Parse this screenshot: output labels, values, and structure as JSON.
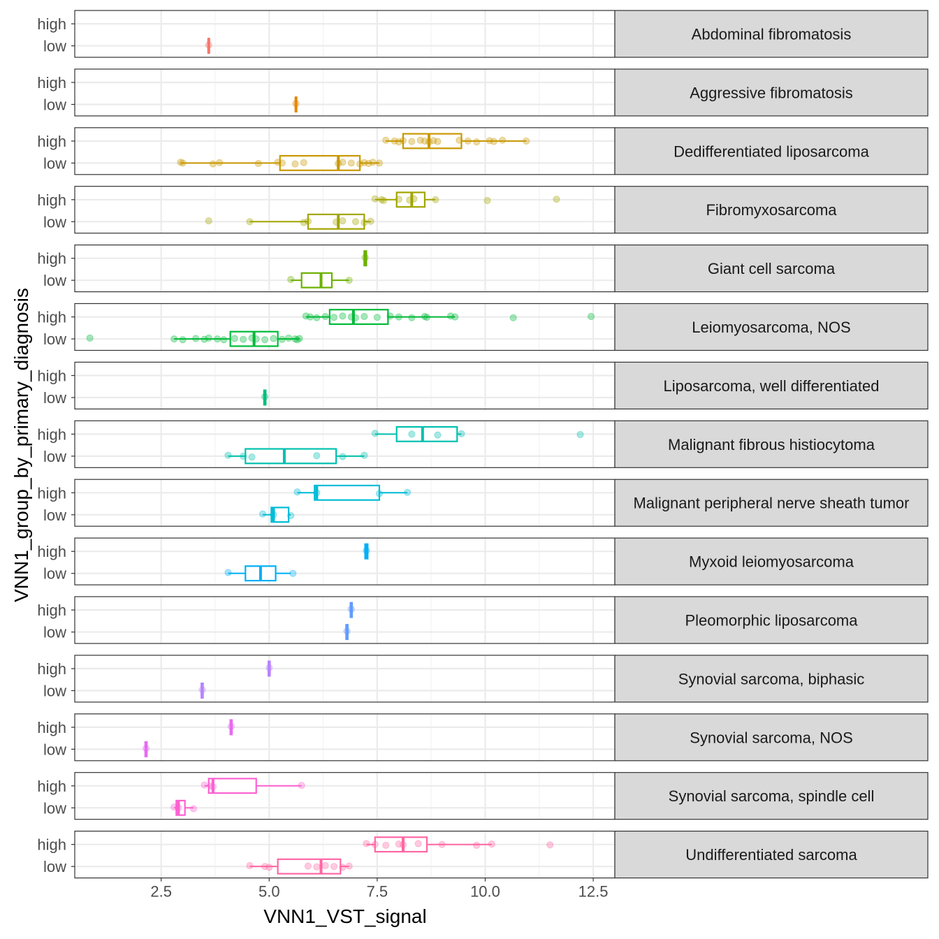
{
  "chart_data": {
    "type": "boxplot",
    "orientation": "horizontal",
    "facet_by": "primary_diagnosis",
    "xlabel": "VNN1_VST_signal",
    "ylabel": "VNN1_group_by_primary_diagnosis",
    "xlim": [
      0.5,
      13.0
    ],
    "x_ticks": [
      {
        "value": 2.5,
        "label": "2.5"
      },
      {
        "value": 5.0,
        "label": "5.0"
      },
      {
        "value": 7.5,
        "label": "7.5"
      },
      {
        "value": 10.0,
        "label": "10.0"
      },
      {
        "value": 12.5,
        "label": "12.5"
      }
    ],
    "groups": [
      "high",
      "low"
    ],
    "panels": [
      {
        "name": "Abdominal fibromatosis",
        "color": "#F8766D",
        "high": null,
        "low": {
          "q1": 3.59,
          "median": 3.6,
          "q3": 3.61,
          "whisker_low": 3.59,
          "whisker_high": 3.61,
          "points": [
            3.6
          ]
        }
      },
      {
        "name": "Aggressive fibromatosis",
        "color": "#E58700",
        "high": null,
        "low": {
          "q1": 5.61,
          "median": 5.62,
          "q3": 5.63,
          "whisker_low": 5.61,
          "whisker_high": 5.63,
          "points": [
            5.62
          ]
        }
      },
      {
        "name": "Dedifferentiated liposarcoma",
        "color": "#C99800",
        "high": {
          "q1": 8.1,
          "median": 8.7,
          "q3": 9.45,
          "whisker_low": 7.7,
          "whisker_high": 10.95,
          "points": [
            7.7,
            7.9,
            8.0,
            8.1,
            8.3,
            8.5,
            8.6,
            8.7,
            8.8,
            8.9,
            9.4,
            9.6,
            9.8,
            10.1,
            10.2,
            10.4,
            10.95
          ]
        },
        "low": {
          "q1": 5.25,
          "median": 6.6,
          "q3": 7.1,
          "whisker_low": 2.95,
          "whisker_high": 7.55,
          "points": [
            2.95,
            3.0,
            3.7,
            3.85,
            4.75,
            5.2,
            5.3,
            5.6,
            5.8,
            6.6,
            6.7,
            6.9,
            7.1,
            7.2,
            7.3,
            7.4,
            7.55
          ]
        }
      },
      {
        "name": "Fibromyxosarcoma",
        "color": "#A3A500",
        "high": {
          "q1": 7.95,
          "median": 8.3,
          "q3": 8.6,
          "whisker_low": 7.45,
          "whisker_high": 8.85,
          "points": [
            7.45,
            7.6,
            7.65,
            8.0,
            8.25,
            8.35,
            8.85,
            10.05,
            11.65
          ]
        },
        "low": {
          "q1": 5.9,
          "median": 6.6,
          "q3": 7.2,
          "whisker_low": 4.55,
          "whisker_high": 7.35,
          "points": [
            3.6,
            4.55,
            5.8,
            5.9,
            6.55,
            6.7,
            7.0,
            7.2,
            7.35
          ]
        }
      },
      {
        "name": "Giant cell sarcoma",
        "color": "#6BB100",
        "high": {
          "q1": 7.2,
          "median": 7.22,
          "q3": 7.25,
          "whisker_low": 7.2,
          "whisker_high": 7.25,
          "points": [
            7.22
          ]
        },
        "low": {
          "q1": 5.75,
          "median": 6.2,
          "q3": 6.45,
          "whisker_low": 5.5,
          "whisker_high": 6.85,
          "points": [
            5.5,
            6.85
          ]
        }
      },
      {
        "name": "Leiomyosarcoma, NOS",
        "color": "#00BA38",
        "high": {
          "q1": 6.4,
          "median": 6.95,
          "q3": 7.75,
          "whisker_low": 5.85,
          "whisker_high": 9.3,
          "points": [
            5.85,
            5.95,
            6.1,
            6.3,
            6.5,
            6.7,
            6.9,
            7.0,
            7.2,
            7.5,
            7.8,
            8.0,
            8.3,
            8.6,
            8.65,
            9.2,
            9.3,
            10.65,
            12.45
          ]
        },
        "low": {
          "q1": 4.1,
          "median": 4.65,
          "q3": 5.2,
          "whisker_low": 2.8,
          "whisker_high": 5.7,
          "points": [
            0.85,
            2.8,
            3.0,
            3.3,
            3.5,
            3.6,
            3.8,
            3.95,
            4.2,
            4.4,
            4.6,
            4.7,
            4.9,
            5.1,
            5.3,
            5.45,
            5.6,
            5.65,
            5.7
          ]
        }
      },
      {
        "name": "Liposarcoma, well differentiated",
        "color": "#00BF7D",
        "high": null,
        "low": {
          "q1": 4.88,
          "median": 4.9,
          "q3": 4.92,
          "whisker_low": 4.88,
          "whisker_high": 4.92,
          "points": [
            4.9
          ]
        }
      },
      {
        "name": "Malignant fibrous histiocytoma",
        "color": "#00C0AF",
        "high": {
          "q1": 7.95,
          "median": 8.55,
          "q3": 9.35,
          "whisker_low": 7.45,
          "whisker_high": 9.45,
          "points": [
            7.45,
            8.3,
            8.9,
            9.45,
            12.2
          ]
        },
        "low": {
          "q1": 4.45,
          "median": 5.35,
          "q3": 6.55,
          "whisker_low": 4.05,
          "whisker_high": 7.2,
          "points": [
            4.05,
            4.4,
            4.6,
            6.1,
            6.7,
            7.2
          ]
        }
      },
      {
        "name": "Malignant peripheral nerve sheath tumor",
        "color": "#00BCD8",
        "high": {
          "q1": 6.05,
          "median": 6.1,
          "q3": 7.55,
          "whisker_low": 5.65,
          "whisker_high": 8.2,
          "points": [
            5.65,
            6.1,
            7.55,
            8.2
          ]
        },
        "low": {
          "q1": 5.05,
          "median": 5.1,
          "q3": 5.45,
          "whisker_low": 4.85,
          "whisker_high": 5.5,
          "points": [
            4.85,
            5.1,
            5.5
          ]
        }
      },
      {
        "name": "Myxoid leiomyosarcoma",
        "color": "#00B0F6",
        "high": {
          "q1": 7.22,
          "median": 7.25,
          "q3": 7.28,
          "whisker_low": 7.22,
          "whisker_high": 7.28,
          "points": [
            7.25
          ]
        },
        "low": {
          "q1": 4.45,
          "median": 4.8,
          "q3": 5.15,
          "whisker_low": 4.05,
          "whisker_high": 5.5,
          "points": [
            4.05,
            5.55
          ]
        }
      },
      {
        "name": "Pleomorphic liposarcoma",
        "color": "#619CFF",
        "high": {
          "q1": 6.88,
          "median": 6.9,
          "q3": 6.92,
          "whisker_low": 6.88,
          "whisker_high": 6.92,
          "points": [
            6.9
          ]
        },
        "low": {
          "q1": 6.78,
          "median": 6.8,
          "q3": 6.82,
          "whisker_low": 6.78,
          "whisker_high": 6.82,
          "points": [
            6.8
          ]
        }
      },
      {
        "name": "Synovial sarcoma, biphasic",
        "color": "#B983FF",
        "high": {
          "q1": 4.98,
          "median": 5.0,
          "q3": 5.02,
          "whisker_low": 4.98,
          "whisker_high": 5.02,
          "points": [
            5.0
          ]
        },
        "low": {
          "q1": 3.43,
          "median": 3.45,
          "q3": 3.47,
          "whisker_low": 3.43,
          "whisker_high": 3.47,
          "points": [
            3.45
          ]
        }
      },
      {
        "name": "Synovial sarcoma, NOS",
        "color": "#E76BF3",
        "high": {
          "q1": 4.1,
          "median": 4.12,
          "q3": 4.14,
          "whisker_low": 4.1,
          "whisker_high": 4.14,
          "points": [
            4.12
          ]
        },
        "low": {
          "q1": 2.13,
          "median": 2.15,
          "q3": 2.17,
          "whisker_low": 2.13,
          "whisker_high": 2.17,
          "points": [
            2.15
          ]
        }
      },
      {
        "name": "Synovial sarcoma, spindle cell",
        "color": "#FD61D1",
        "high": {
          "q1": 3.6,
          "median": 3.7,
          "q3": 4.7,
          "whisker_low": 3.5,
          "whisker_high": 5.75,
          "points": [
            3.5,
            3.65,
            3.7,
            5.75
          ]
        },
        "low": {
          "q1": 2.85,
          "median": 2.9,
          "q3": 3.05,
          "whisker_low": 2.8,
          "whisker_high": 3.25,
          "points": [
            2.8,
            2.9,
            3.25
          ]
        }
      },
      {
        "name": "Undifferentiated sarcoma",
        "color": "#FF67A4",
        "high": {
          "q1": 7.45,
          "median": 8.1,
          "q3": 8.65,
          "whisker_low": 7.25,
          "whisker_high": 10.15,
          "points": [
            7.25,
            7.45,
            7.7,
            8.0,
            8.1,
            8.45,
            9.0,
            9.8,
            10.15,
            11.5
          ]
        },
        "low": {
          "q1": 5.2,
          "median": 6.2,
          "q3": 6.65,
          "whisker_low": 4.55,
          "whisker_high": 6.85,
          "points": [
            4.55,
            4.9,
            5.0,
            5.9,
            6.1,
            6.3,
            6.5,
            6.7,
            6.85
          ]
        }
      }
    ]
  }
}
